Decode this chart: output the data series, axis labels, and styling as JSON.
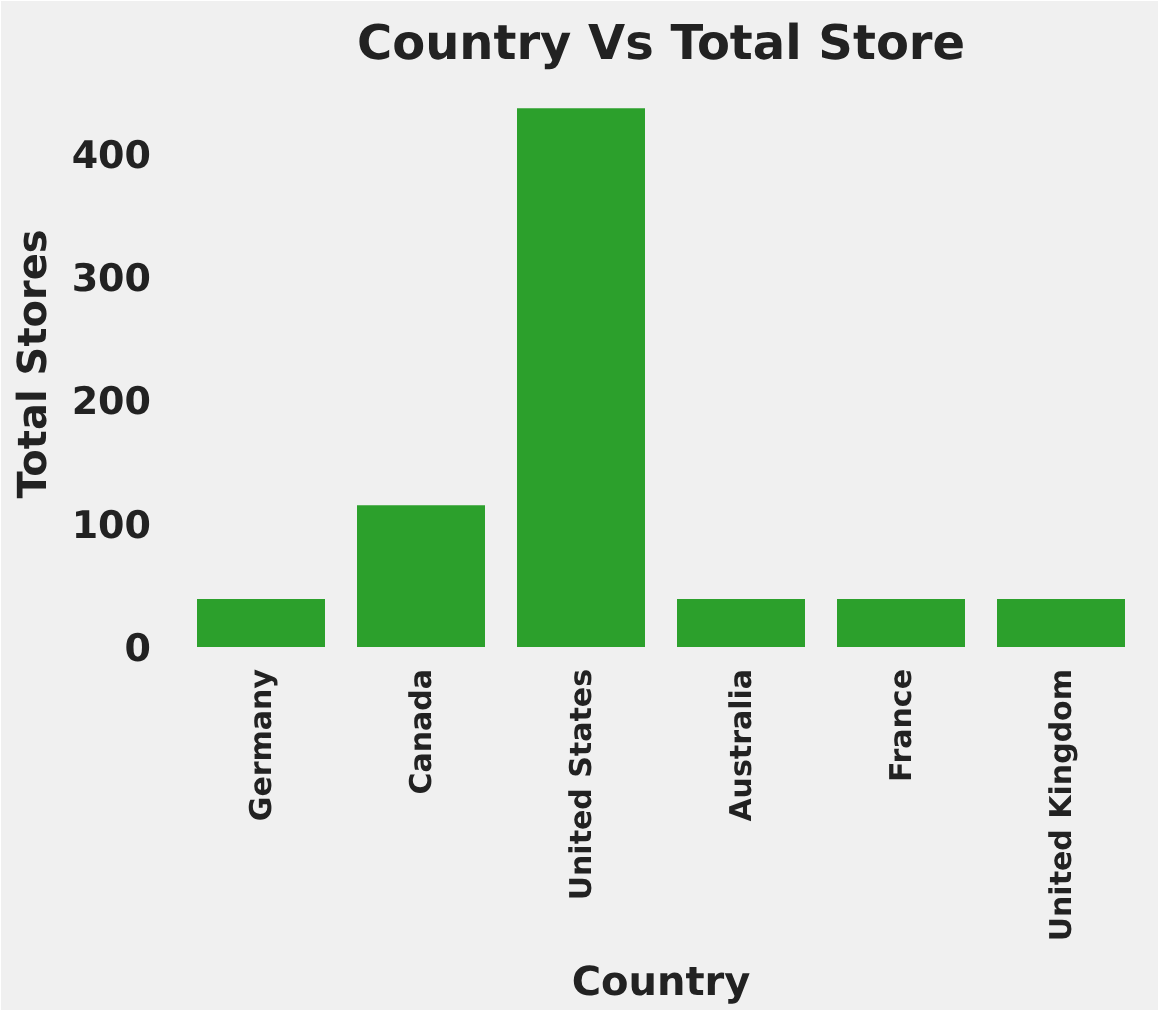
{
  "chart_data": {
    "type": "bar",
    "title": "Country Vs Total Store",
    "xlabel": "Country",
    "ylabel": "Total Stores",
    "categories": [
      "Germany",
      "Canada",
      "United States",
      "Australia",
      "France",
      "United Kingdom"
    ],
    "values": [
      39,
      115,
      437,
      39,
      39,
      39
    ],
    "color": "#2ca02c",
    "ylim": [
      0,
      459
    ],
    "yticks": [
      0,
      100,
      200,
      300,
      400
    ],
    "grid": false
  }
}
